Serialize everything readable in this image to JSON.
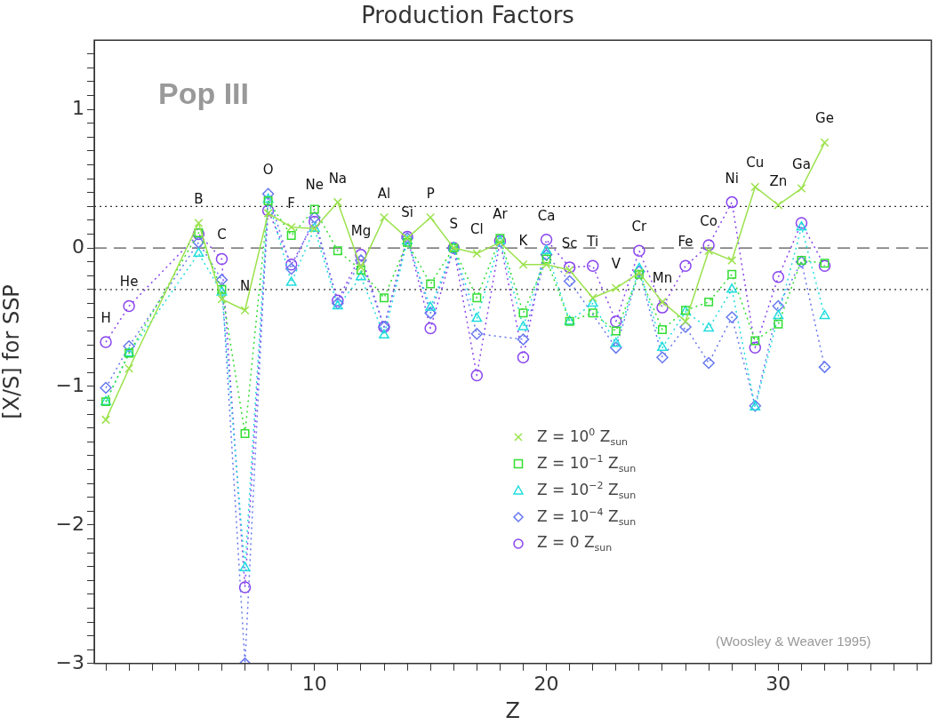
{
  "chart_data": {
    "type": "line",
    "title": "Production Factors",
    "xlabel": "Z",
    "ylabel": "[X/S] for SSP",
    "x": [
      1,
      2,
      5,
      6,
      7,
      8,
      9,
      10,
      11,
      12,
      13,
      14,
      15,
      16,
      17,
      18,
      19,
      20,
      21,
      22,
      23,
      24,
      25,
      26,
      27,
      28,
      29,
      30,
      31,
      32
    ],
    "series": [
      {
        "name": "Z = 10$^{0}$ Z$_{sun}$",
        "color": "#9be24c",
        "marker": "cross",
        "line_style": "solid",
        "values": [
          -1.24,
          -0.87,
          0.18,
          -0.37,
          -0.45,
          0.25,
          0.15,
          0.14,
          0.33,
          -0.14,
          0.22,
          0.07,
          0.22,
          0,
          -0.04,
          0.04,
          -0.12,
          -0.12,
          -0.16,
          -0.36,
          -0.29,
          -0.18,
          -0.39,
          -0.53,
          -0.02,
          -0.09,
          0.44,
          0.31,
          0.43,
          0.76
        ]
      },
      {
        "name": "Z = 10$^{−1}$ Z$_{sun}$",
        "color": "#33dd33",
        "marker": "square",
        "line_style": "dotted",
        "values": [
          -1.11,
          -0.76,
          0.11,
          -0.3,
          -1.34,
          0.34,
          0.09,
          0.28,
          -0.02,
          -0.16,
          -0.36,
          0.04,
          -0.26,
          0,
          -0.36,
          0.07,
          -0.47,
          -0.08,
          -0.53,
          -0.47,
          -0.6,
          -0.19,
          -0.59,
          -0.45,
          -0.39,
          -0.19,
          -0.67,
          -0.55,
          -0.09,
          -0.11
        ]
      },
      {
        "name": "Z = 10$^{−2}$ Z$_{sun}$",
        "color": "#22dddd",
        "marker": "triangle",
        "line_style": "dotted",
        "values": [
          -1.11,
          -0.76,
          -0.04,
          -0.32,
          -2.31,
          0.35,
          -0.25,
          0.14,
          -0.42,
          -0.21,
          -0.63,
          0.05,
          -0.43,
          0,
          -0.51,
          0.05,
          -0.57,
          -0.02,
          -0.53,
          -0.4,
          -0.69,
          -0.15,
          -0.72,
          -0.46,
          -0.58,
          -0.3,
          -1.15,
          -0.49,
          0.15,
          -0.49
        ]
      },
      {
        "name": "Z = 10$^{−4}$ Z$_{sun}$",
        "color": "#6677ee",
        "marker": "diamond",
        "line_style": "dotted",
        "values": [
          -1.01,
          -0.71,
          0.04,
          -0.23,
          -3,
          0.39,
          -0.15,
          0.22,
          -0.4,
          -0.09,
          -0.57,
          0.07,
          -0.47,
          0,
          -0.62,
          null,
          -0.66,
          -0.05,
          -0.24,
          null,
          -0.72,
          -0.17,
          -0.79,
          -0.57,
          -0.83,
          -0.5,
          -1.14,
          -0.42,
          -0.1,
          -0.86
        ]
      },
      {
        "name": "Z =  0 Z$_{sun}$",
        "color": "#8844ee",
        "marker": "circle",
        "line_style": "dotted",
        "values": [
          -0.68,
          -0.42,
          0.1,
          -0.08,
          -2.45,
          0.27,
          -0.12,
          0.19,
          -0.38,
          -0.05,
          -0.57,
          0.08,
          -0.58,
          0,
          -0.92,
          0.05,
          -0.79,
          0.06,
          -0.14,
          -0.13,
          -0.53,
          -0.02,
          -0.43,
          -0.13,
          0.02,
          0.33,
          -0.72,
          -0.21,
          0.18,
          -0.13
        ]
      }
    ],
    "xlim": [
      0.5,
      36.6
    ],
    "ylim": [
      -3,
      1.5
    ],
    "xticks": [
      {
        "value": 1,
        "label": null
      },
      {
        "value": 2,
        "label": null
      },
      {
        "value": 3,
        "label": null
      },
      {
        "value": 4,
        "label": null
      },
      {
        "value": 5,
        "label": null
      },
      {
        "value": 6,
        "label": null
      },
      {
        "value": 7,
        "label": null
      },
      {
        "value": 8,
        "label": null
      },
      {
        "value": 9,
        "label": null
      },
      10,
      {
        "value": 11,
        "label": null
      },
      {
        "value": 12,
        "label": null
      },
      {
        "value": 13,
        "label": null
      },
      {
        "value": 14,
        "label": null
      },
      {
        "value": 15,
        "label": null
      },
      {
        "value": 16,
        "label": null
      },
      {
        "value": 17,
        "label": null
      },
      {
        "value": 18,
        "label": null
      },
      {
        "value": 19,
        "label": null
      },
      20,
      {
        "value": 21,
        "label": null
      },
      {
        "value": 22,
        "label": null
      },
      {
        "value": 23,
        "label": null
      },
      {
        "value": 24,
        "label": null
      },
      {
        "value": 25,
        "label": null
      },
      {
        "value": 26,
        "label": null
      },
      {
        "value": 27,
        "label": null
      },
      {
        "value": 28,
        "label": null
      },
      {
        "value": 29,
        "label": null
      },
      30,
      {
        "value": 31,
        "label": null
      },
      {
        "value": 32,
        "label": null
      },
      {
        "value": 33,
        "label": null
      },
      {
        "value": 34,
        "label": null
      },
      {
        "value": 35,
        "label": null
      },
      {
        "value": 36,
        "label": null
      }
    ],
    "yticks": [
      {
        "value": -3,
        "label": "−3"
      },
      {
        "value": -2.9,
        "label": null
      },
      {
        "value": -2.8,
        "label": null
      },
      {
        "value": -2.7,
        "label": null
      },
      {
        "value": -2.6,
        "label": null
      },
      {
        "value": -2.5,
        "label": null
      },
      {
        "value": -2.4,
        "label": null
      },
      {
        "value": -2.3,
        "label": null
      },
      {
        "value": -2.2,
        "label": null
      },
      {
        "value": -2.1,
        "label": null
      },
      {
        "value": -2,
        "label": "−2"
      },
      {
        "value": -1.9,
        "label": null
      },
      {
        "value": -1.8,
        "label": null
      },
      {
        "value": -1.7,
        "label": null
      },
      {
        "value": -1.6,
        "label": null
      },
      {
        "value": -1.5,
        "label": null
      },
      {
        "value": -1.4,
        "label": null
      },
      {
        "value": -1.3,
        "label": null
      },
      {
        "value": -1.2,
        "label": null
      },
      {
        "value": -1.1,
        "label": null
      },
      {
        "value": -1,
        "label": "−1"
      },
      {
        "value": -0.9,
        "label": null
      },
      {
        "value": -0.8,
        "label": null
      },
      {
        "value": -0.7,
        "label": null
      },
      {
        "value": -0.6,
        "label": null
      },
      {
        "value": -0.5,
        "label": null
      },
      {
        "value": -0.4,
        "label": null
      },
      {
        "value": -0.3,
        "label": null
      },
      {
        "value": -0.2,
        "label": null
      },
      {
        "value": -0.1,
        "label": null
      },
      0,
      {
        "value": 0.1,
        "label": null
      },
      {
        "value": 0.2,
        "label": null
      },
      {
        "value": 0.3,
        "label": null
      },
      {
        "value": 0.4,
        "label": null
      },
      {
        "value": 0.5,
        "label": null
      },
      {
        "value": 0.6,
        "label": null
      },
      {
        "value": 0.7,
        "label": null
      },
      {
        "value": 0.8,
        "label": null
      },
      {
        "value": 0.9,
        "label": null
      },
      1,
      {
        "value": 1.1,
        "label": null
      },
      {
        "value": 1.2,
        "label": null
      },
      {
        "value": 1.3,
        "label": null
      },
      {
        "value": 1.4,
        "label": null
      }
    ],
    "ref_lines": [
      {
        "axis": "y",
        "value": 0,
        "line_style": "dashed",
        "color": "#555555"
      },
      {
        "axis": "y",
        "value": 0.3,
        "line_style": "dotted",
        "color": "#333333"
      },
      {
        "axis": "y",
        "value": -0.3,
        "line_style": "dotted",
        "color": "#333333"
      }
    ],
    "grid": false,
    "legend": "bottom",
    "annotations": [
      "Pop III",
      "(Woosley & Weaver 1995)",
      "H",
      "He",
      "B",
      "C",
      "N",
      "O",
      "F",
      "Ne",
      "Na",
      "Mg",
      "Al",
      "Si",
      "P",
      "S",
      "Cl",
      "Ar",
      "K",
      "Ca",
      "Sc",
      "Ti",
      "V",
      "Cr",
      "Mn",
      "Fe",
      "Co",
      "Ni",
      "Cu",
      "Zn",
      "Ga",
      "Ge"
    ]
  }
}
